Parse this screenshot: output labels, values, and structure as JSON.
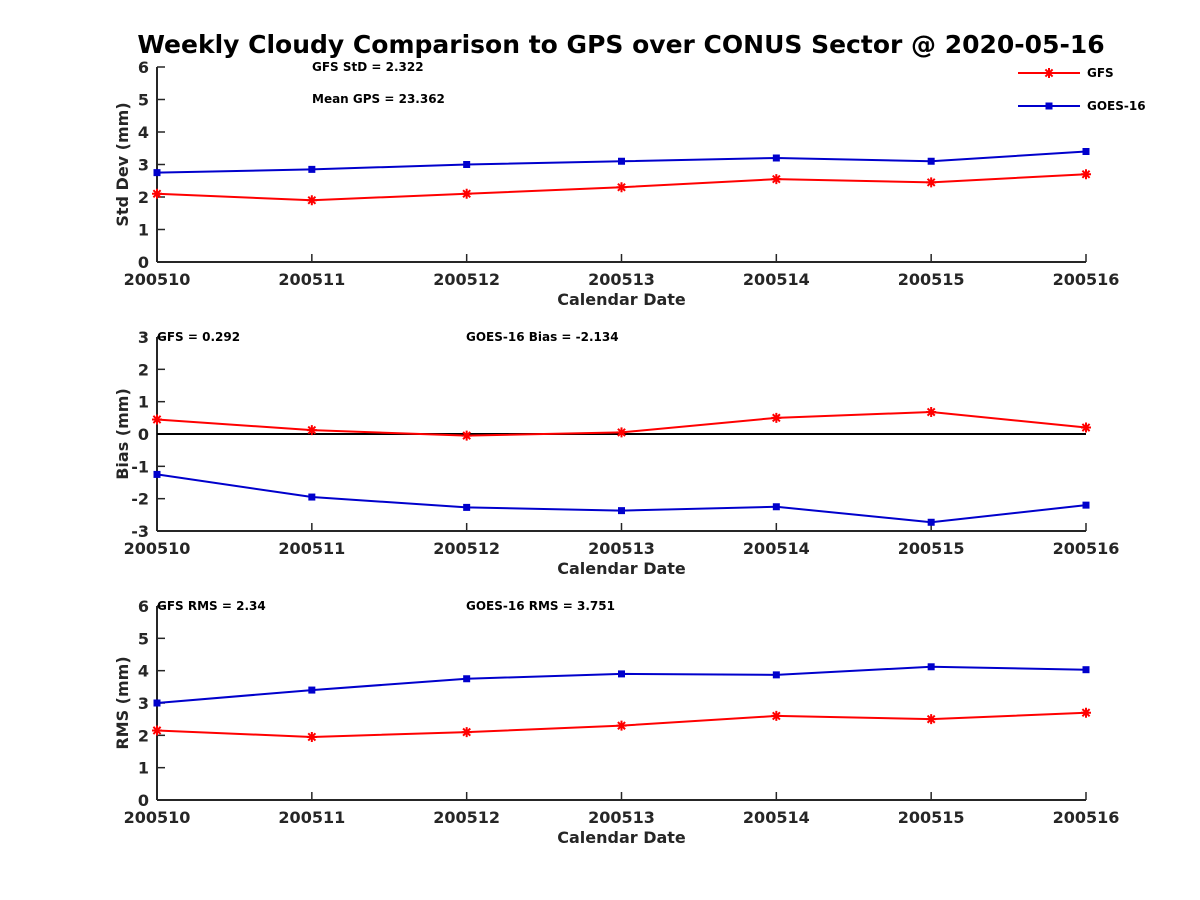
{
  "title": "Weekly Cloudy Comparison to GPS over CONUS Sector @ 2020-05-16",
  "legend": {
    "placement": "top-right",
    "entries": [
      {
        "name": "GFS",
        "color": "#ff0000",
        "marker": "asterisk"
      },
      {
        "name": "GOES-16",
        "color": "#0000cc",
        "marker": "square"
      }
    ]
  },
  "chart_data": [
    {
      "type": "line",
      "categories": [
        "200510",
        "200511",
        "200512",
        "200513",
        "200514",
        "200515",
        "200516"
      ],
      "xlabel": "Calendar Date",
      "ylabel": "Std Dev (mm)",
      "ylim": [
        0,
        6
      ],
      "yticks": [
        "0",
        "1",
        "2",
        "3",
        "4",
        "5",
        "6"
      ],
      "annotations": [
        "GFS StD = 2.322",
        "Mean GPS = 23.362"
      ],
      "series": [
        {
          "name": "GFS",
          "color": "#ff0000",
          "values": [
            2.1,
            1.9,
            2.1,
            2.3,
            2.55,
            2.45,
            2.7
          ]
        },
        {
          "name": "GOES-16",
          "color": "#0000cc",
          "values": [
            2.75,
            2.85,
            3.0,
            3.1,
            3.2,
            3.1,
            3.4
          ]
        }
      ]
    },
    {
      "type": "line",
      "categories": [
        "200510",
        "200511",
        "200512",
        "200513",
        "200514",
        "200515",
        "200516"
      ],
      "xlabel": "Calendar Date",
      "ylabel": "Bias (mm)",
      "ylim": [
        -3,
        3
      ],
      "yticks": [
        "-3",
        "-2",
        "-1",
        "0",
        "1",
        "2",
        "3"
      ],
      "zero_line": true,
      "annotations": [
        "GFS = 0.292",
        "GOES-16 Bias  = -2.134"
      ],
      "series": [
        {
          "name": "GFS",
          "color": "#ff0000",
          "values": [
            0.45,
            0.12,
            -0.05,
            0.05,
            0.5,
            0.68,
            0.2
          ]
        },
        {
          "name": "GOES-16",
          "color": "#0000cc",
          "values": [
            -1.25,
            -1.95,
            -2.27,
            -2.37,
            -2.25,
            -2.73,
            -2.2
          ]
        }
      ]
    },
    {
      "type": "line",
      "categories": [
        "200510",
        "200511",
        "200512",
        "200513",
        "200514",
        "200515",
        "200516"
      ],
      "xlabel": "Calendar Date",
      "ylabel": "RMS (mm)",
      "ylim": [
        0,
        6
      ],
      "yticks": [
        "0",
        "1",
        "2",
        "3",
        "4",
        "5",
        "6"
      ],
      "annotations": [
        "GFS RMS = 2.34",
        "GOES-16 RMS = 3.751"
      ],
      "series": [
        {
          "name": "GFS",
          "color": "#ff0000",
          "values": [
            2.15,
            1.95,
            2.1,
            2.3,
            2.6,
            2.5,
            2.7
          ]
        },
        {
          "name": "GOES-16",
          "color": "#0000cc",
          "values": [
            3.0,
            3.4,
            3.75,
            3.9,
            3.87,
            4.12,
            4.03
          ]
        }
      ]
    }
  ]
}
